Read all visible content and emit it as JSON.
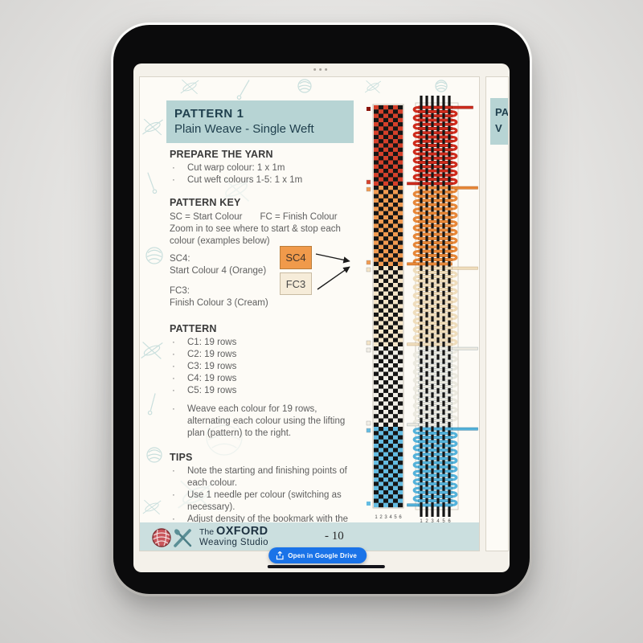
{
  "viewer": {
    "drive_button_label": "Open in Google Drive"
  },
  "doc": {
    "header": {
      "line1": "PATTERN 1",
      "line2": "Plain Weave - Single Weft"
    },
    "prepare": {
      "heading": "PREPARE THE YARN",
      "bullets": [
        "Cut warp colour: 1 x 1m",
        "Cut weft colours 1-5: 1 x 1m"
      ]
    },
    "pattern_key": {
      "heading": "PATTERN KEY",
      "legend_sc": "SC = Start Colour",
      "legend_fc": "FC = Finish Colour",
      "note": "Zoom in to see where to start & stop each colour (examples below)",
      "examples": [
        {
          "label": "SC4:",
          "description": "Start Colour 4 (Orange)",
          "tag": "SC4"
        },
        {
          "label": "FC3:",
          "description": "Finish Colour 3 (Cream)",
          "tag": "FC3"
        }
      ]
    },
    "pattern": {
      "heading": "PATTERN",
      "bullets": [
        "C1: 19 rows",
        "C2: 19 rows",
        "C3: 19 rows",
        "C4: 19 rows",
        "C5: 19 rows"
      ],
      "note": "Weave each colour for 19 rows, alternating each colour using the lifting plan (pattern) to the right."
    },
    "tips": {
      "heading": "TIPS",
      "bullets": [
        "Note the starting and finishing points of each colour.",
        "Use 1 needle per colour (switching as necessary).",
        "Adjust density of the bookmark with the comb."
      ]
    },
    "footer": {
      "brand_prefix": "The",
      "brand_name": "OXFORD",
      "brand_suffix": "Weaving Studio",
      "page_number": "- 10"
    },
    "next_page_fragment": {
      "line1": "PA",
      "line2": "V"
    }
  },
  "weave_pattern": {
    "type": "weaving-lifting-plan",
    "warp_threads": 6,
    "warp_numbers": [
      "1",
      "2",
      "3",
      "4",
      "5",
      "6"
    ],
    "rows_per_colour": 19,
    "warp_hex": "#151515",
    "colours_bottom_to_top": [
      {
        "id": "C1",
        "name": "Blue",
        "plan_hex": "#64bce2",
        "weft_hex": "#54b2da",
        "edge_hex": "#2a7ca3"
      },
      {
        "id": "C2",
        "name": "White",
        "plan_hex": "#f2efe7",
        "weft_hex": "#ebe9df",
        "edge_hex": "#aab4b6"
      },
      {
        "id": "C3",
        "name": "Cream",
        "plan_hex": "#f5e5c8",
        "weft_hex": "#efddbc",
        "edge_hex": "#c5a97e"
      },
      {
        "id": "C4",
        "name": "Orange",
        "plan_hex": "#f19a50",
        "weft_hex": "#e78738",
        "edge_hex": "#b55c14"
      },
      {
        "id": "C5",
        "name": "Red",
        "plan_hex": "#d6402a",
        "weft_hex": "#cf2b1c",
        "edge_hex": "#8c150c"
      }
    ]
  },
  "colors": {
    "accent_teal": "#b7d4d4",
    "footer_band": "#cbdfdf",
    "drive_blue": "#1a73e8",
    "sc4_swatch": "#f09a4b",
    "fc3_swatch": "#f6ecd9"
  }
}
